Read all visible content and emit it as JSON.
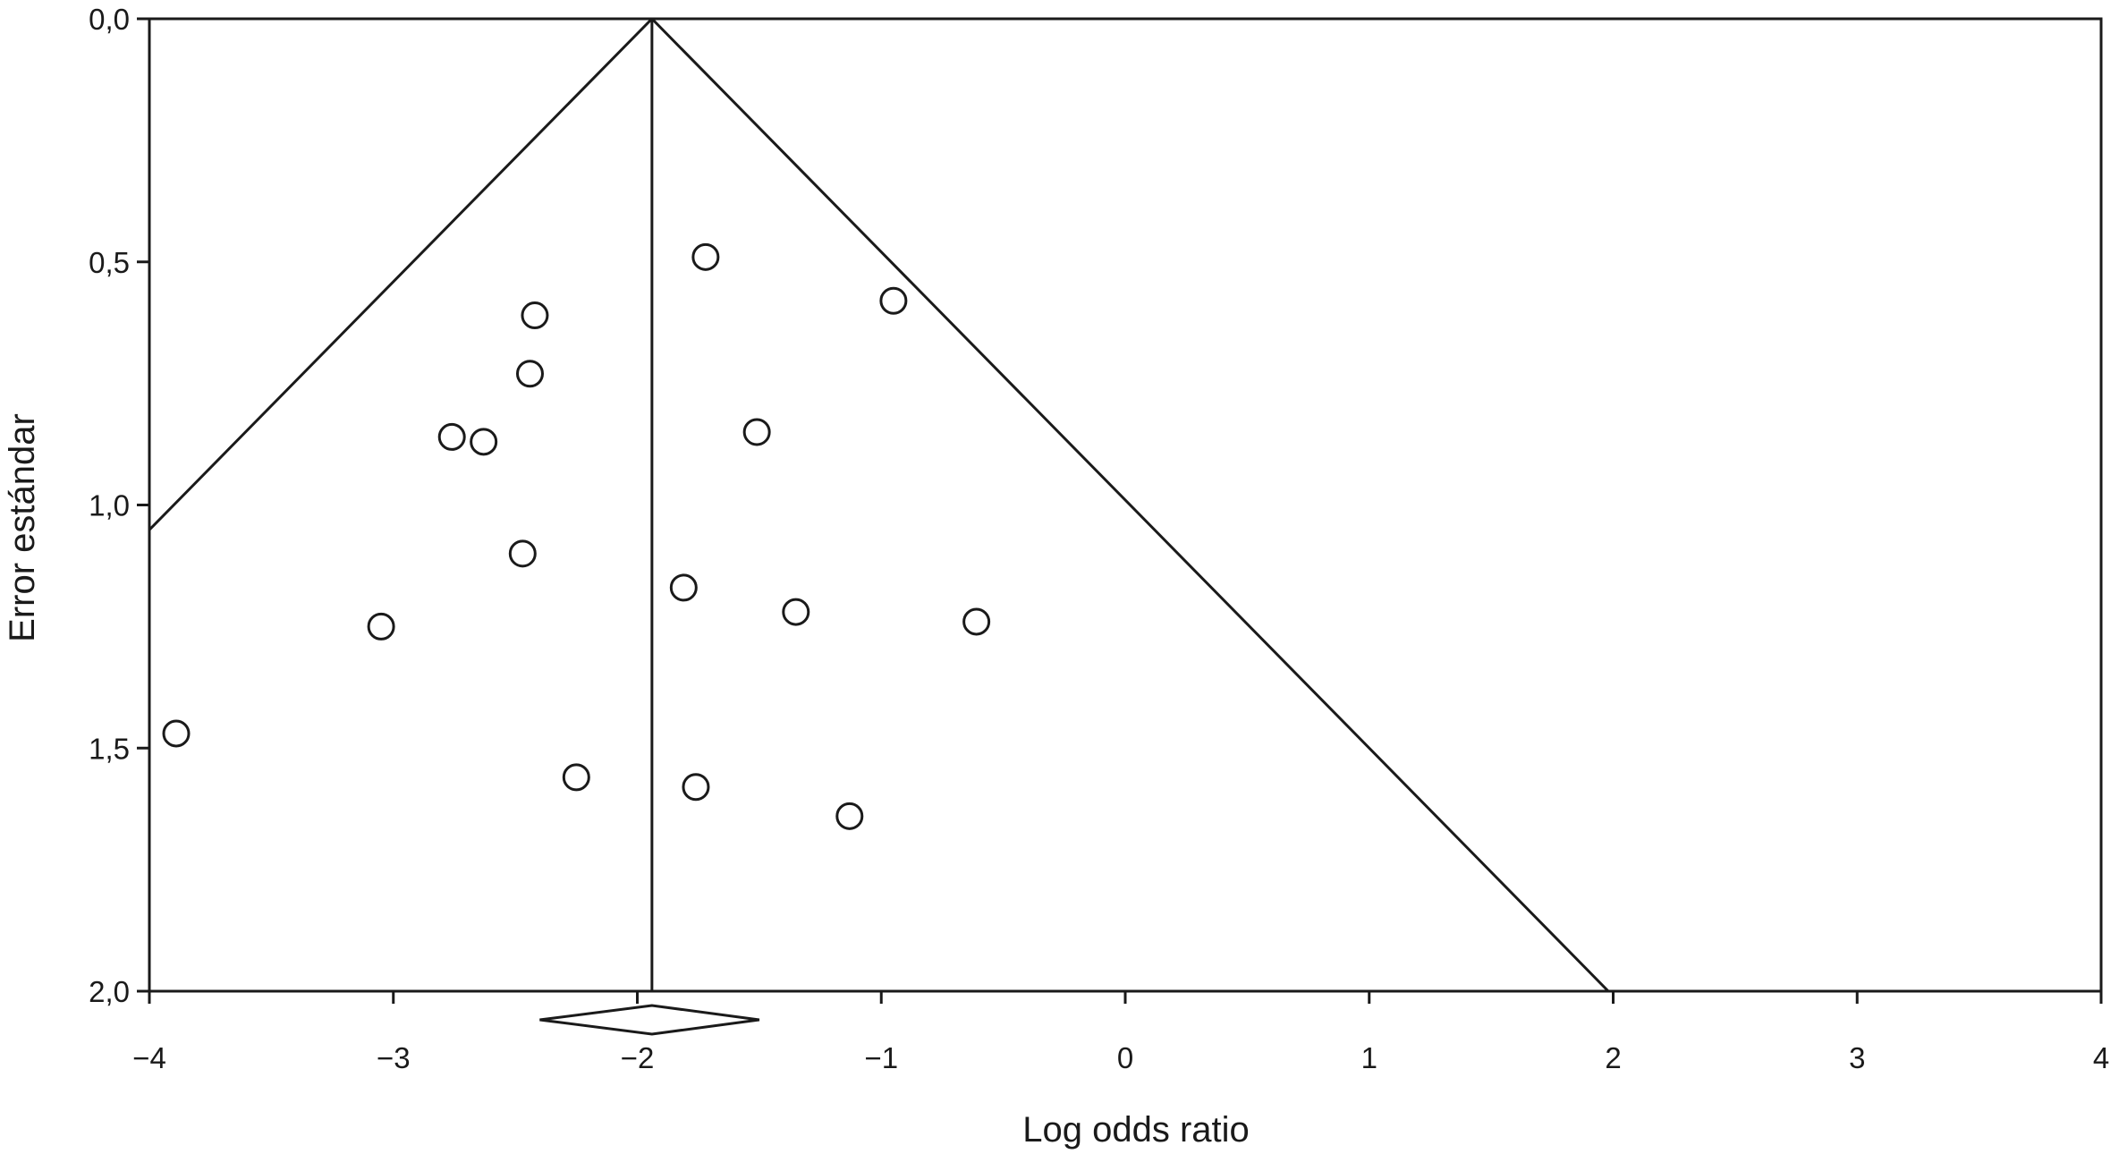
{
  "chart_data": {
    "type": "scatter",
    "title": "",
    "xlabel": "Log odds ratio",
    "ylabel": "Error estándar",
    "xlim": [
      -4,
      4
    ],
    "ylim": [
      0,
      2
    ],
    "y_inverted": true,
    "x_ticks": [
      -4,
      -3,
      -2,
      -1,
      0,
      1,
      2,
      3,
      4
    ],
    "x_tick_labels": [
      "−4",
      "−3",
      "−2",
      "−1",
      "0",
      "1",
      "2",
      "3",
      "4"
    ],
    "y_ticks": [
      0,
      0.5,
      1,
      1.5,
      2
    ],
    "y_tick_labels": [
      "0,0",
      "0,5",
      "1,0",
      "1,5",
      "2,0"
    ],
    "grid": false,
    "pooled_estimate": -1.94,
    "pooled_ci": [
      -2.4,
      -1.5
    ],
    "funnel_ci_multiplier": 1.96,
    "points": [
      {
        "x": -1.72,
        "y": 0.49
      },
      {
        "x": -0.95,
        "y": 0.58
      },
      {
        "x": -2.42,
        "y": 0.61
      },
      {
        "x": -2.44,
        "y": 0.73
      },
      {
        "x": -1.51,
        "y": 0.85
      },
      {
        "x": -2.76,
        "y": 0.86
      },
      {
        "x": -2.63,
        "y": 0.87
      },
      {
        "x": -2.47,
        "y": 1.1
      },
      {
        "x": -1.81,
        "y": 1.17
      },
      {
        "x": -1.35,
        "y": 1.22
      },
      {
        "x": -3.05,
        "y": 1.25
      },
      {
        "x": -0.61,
        "y": 1.24
      },
      {
        "x": -3.89,
        "y": 1.47
      },
      {
        "x": -2.25,
        "y": 1.56
      },
      {
        "x": -1.76,
        "y": 1.58
      },
      {
        "x": -1.13,
        "y": 1.64
      }
    ],
    "colors": {
      "stroke": "#1a1a1a",
      "background": "#ffffff"
    }
  }
}
